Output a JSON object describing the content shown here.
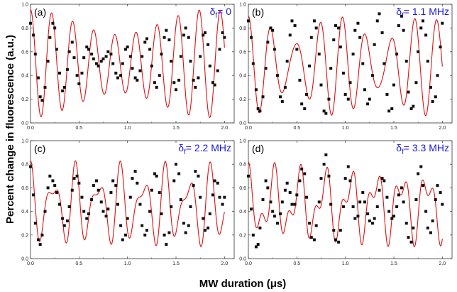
{
  "figure": {
    "ylabel": "Percent change in fluorescence (a.u.)",
    "xlabel": "MW duration (μs)",
    "colors": {
      "fit": "#e01010",
      "points": "#111111",
      "detuning_text": "#1a1adb",
      "axes": "#333333"
    }
  },
  "chart_data": [
    {
      "type": "scatter",
      "panel": "(a)",
      "detuning_prefix": "δ",
      "detuning_sub": "f",
      "detuning_value": "= 0",
      "xlim": [
        0,
        2.1
      ],
      "ylim": [
        0,
        1.0
      ],
      "xticks": [
        "0.0",
        "0.5",
        "1.0",
        "1.5",
        "2.0"
      ],
      "yticks": [
        "0.0",
        "0.2",
        "0.4",
        "0.6",
        "0.8",
        "1.0"
      ],
      "fit": {
        "offset": 0.5,
        "amp1": 0.35,
        "freq1": 4.6,
        "phase1": 0.0,
        "amp2": 0.0,
        "freq2": 0.0,
        "phase2": 0.0,
        "beat_amp": 0.3,
        "beat_freq": 0.55,
        "beat_phase": 0.0,
        "decay": 0.0
      },
      "series": [
        {
          "x": [
            0.0,
            0.03,
            0.05,
            0.08,
            0.1,
            0.12,
            0.15,
            0.18,
            0.2,
            0.23,
            0.25,
            0.27,
            0.3,
            0.33,
            0.35,
            0.38,
            0.4,
            0.43,
            0.45,
            0.48,
            0.5,
            0.53,
            0.55,
            0.58,
            0.6,
            0.63,
            0.65,
            0.68,
            0.7,
            0.73,
            0.75,
            0.78,
            0.8,
            0.83,
            0.85,
            0.88,
            0.9,
            0.93,
            0.95,
            0.98,
            1.0,
            1.03,
            1.05,
            1.08,
            1.1,
            1.13,
            1.15,
            1.18,
            1.2,
            1.23,
            1.25,
            1.28,
            1.3,
            1.33,
            1.35,
            1.38,
            1.4,
            1.43,
            1.45,
            1.48,
            1.5,
            1.53,
            1.55,
            1.58,
            1.6,
            1.63,
            1.65,
            1.68,
            1.7,
            1.73,
            1.75,
            1.78,
            1.8,
            1.83,
            1.85,
            1.88,
            1.9,
            1.93,
            1.95,
            1.98,
            2.0
          ],
          "y": [
            0.84,
            0.74,
            0.58,
            0.38,
            0.22,
            0.19,
            0.3,
            0.52,
            0.72,
            0.84,
            0.8,
            0.62,
            0.42,
            0.27,
            0.3,
            0.45,
            0.6,
            0.68,
            0.55,
            0.4,
            0.33,
            0.42,
            0.55,
            0.64,
            0.62,
            0.58,
            0.54,
            0.5,
            0.48,
            0.52,
            0.54,
            0.56,
            0.6,
            0.58,
            0.5,
            0.42,
            0.38,
            0.4,
            0.5,
            0.62,
            0.64,
            0.56,
            0.46,
            0.38,
            0.36,
            0.44,
            0.56,
            0.68,
            0.71,
            0.62,
            0.48,
            0.34,
            0.3,
            0.4,
            0.58,
            0.72,
            0.78,
            0.7,
            0.52,
            0.34,
            0.28,
            0.36,
            0.56,
            0.74,
            0.8,
            0.72,
            0.52,
            0.36,
            0.3,
            0.38,
            0.56,
            0.74,
            0.76,
            0.66,
            0.48,
            0.34,
            0.32,
            0.44,
            0.62,
            0.76,
            0.72
          ]
        }
      ]
    },
    {
      "type": "scatter",
      "panel": "(b)",
      "detuning_prefix": "δ",
      "detuning_sub": "f",
      "detuning_value": "= 1.1 MHz",
      "xlim": [
        0,
        2.1
      ],
      "ylim": [
        0,
        1.0
      ],
      "xticks": [
        "0.0",
        "0.5",
        "1.0",
        "1.5",
        "2.0"
      ],
      "yticks": [
        "0.0",
        "0.2",
        "0.4",
        "0.6",
        "0.8",
        "1.0"
      ],
      "fit": {
        "offset": 0.48,
        "amp1": 0.3,
        "freq1": 4.1,
        "phase1": 0.0,
        "amp2": 0.12,
        "freq2": 5.2,
        "phase2": 0.0,
        "beat_amp": 0.0,
        "beat_freq": 0.0,
        "beat_phase": 0.0,
        "decay": 0.0
      },
      "series": [
        {
          "x": [
            0.0,
            0.03,
            0.05,
            0.08,
            0.1,
            0.12,
            0.15,
            0.18,
            0.2,
            0.23,
            0.25,
            0.27,
            0.3,
            0.33,
            0.35,
            0.38,
            0.4,
            0.43,
            0.45,
            0.48,
            0.5,
            0.53,
            0.55,
            0.58,
            0.6,
            0.63,
            0.65,
            0.68,
            0.7,
            0.73,
            0.75,
            0.78,
            0.8,
            0.83,
            0.85,
            0.88,
            0.9,
            0.93,
            0.95,
            0.98,
            1.0,
            1.03,
            1.05,
            1.08,
            1.1,
            1.13,
            1.15,
            1.18,
            1.2,
            1.23,
            1.25,
            1.28,
            1.3,
            1.33,
            1.35,
            1.38,
            1.4,
            1.43,
            1.45,
            1.48,
            1.5,
            1.53,
            1.55,
            1.58,
            1.6,
            1.63,
            1.65,
            1.68,
            1.7,
            1.73,
            1.75,
            1.78,
            1.8,
            1.83,
            1.85,
            1.88,
            1.9,
            1.93,
            1.95,
            1.98,
            2.0
          ],
          "y": [
            0.86,
            0.72,
            0.5,
            0.28,
            0.12,
            0.1,
            0.22,
            0.46,
            0.68,
            0.8,
            0.78,
            0.62,
            0.4,
            0.22,
            0.18,
            0.3,
            0.52,
            0.74,
            0.86,
            0.82,
            0.62,
            0.36,
            0.16,
            0.12,
            0.24,
            0.48,
            0.72,
            0.86,
            0.8,
            0.58,
            0.32,
            0.1,
            0.08,
            0.2,
            0.46,
            0.7,
            0.82,
            0.8,
            0.64,
            0.42,
            0.24,
            0.2,
            0.34,
            0.58,
            0.78,
            0.84,
            0.72,
            0.5,
            0.28,
            0.16,
            0.2,
            0.4,
            0.66,
            0.86,
            0.92,
            0.76,
            0.5,
            0.24,
            0.1,
            0.12,
            0.32,
            0.58,
            0.82,
            0.9,
            0.78,
            0.52,
            0.26,
            0.12,
            0.14,
            0.34,
            0.6,
            0.8,
            0.86,
            0.74,
            0.52,
            0.3,
            0.18,
            0.22,
            0.4,
            0.64,
            0.84
          ]
        }
      ]
    },
    {
      "type": "scatter",
      "panel": "(c)",
      "detuning_prefix": "δ",
      "detuning_sub": "f",
      "detuning_value": "= 2.2 MHz",
      "xlim": [
        0,
        2.1
      ],
      "ylim": [
        0,
        1.0
      ],
      "xticks": [
        "0.0",
        "0.5",
        "1.0",
        "1.5",
        "2.0"
      ],
      "yticks": [
        "0.0",
        "0.2",
        "0.4",
        "0.6",
        "0.8",
        "1.0"
      ],
      "fit": {
        "offset": 0.45,
        "amp1": 0.24,
        "freq1": 4.3,
        "phase1": 0.0,
        "amp2": 0.14,
        "freq2": 6.5,
        "phase2": 0.0,
        "beat_amp": 0.0,
        "beat_freq": 0.0,
        "beat_phase": 0.0,
        "decay": 0.0
      },
      "series": [
        {
          "x": [
            0.0,
            0.03,
            0.05,
            0.08,
            0.1,
            0.12,
            0.15,
            0.18,
            0.2,
            0.23,
            0.25,
            0.27,
            0.3,
            0.33,
            0.35,
            0.38,
            0.4,
            0.43,
            0.45,
            0.48,
            0.5,
            0.53,
            0.55,
            0.58,
            0.6,
            0.63,
            0.65,
            0.68,
            0.7,
            0.73,
            0.75,
            0.78,
            0.8,
            0.83,
            0.85,
            0.88,
            0.9,
            0.93,
            0.95,
            0.98,
            1.0,
            1.03,
            1.05,
            1.08,
            1.1,
            1.13,
            1.15,
            1.18,
            1.2,
            1.23,
            1.25,
            1.28,
            1.3,
            1.33,
            1.35,
            1.38,
            1.4,
            1.43,
            1.45,
            1.48,
            1.5,
            1.53,
            1.55,
            1.58,
            1.6,
            1.63,
            1.65,
            1.68,
            1.7,
            1.73,
            1.75,
            1.78,
            1.8,
            1.83,
            1.85,
            1.88,
            1.9,
            1.93,
            1.95,
            1.98,
            2.0
          ],
          "y": [
            0.78,
            0.54,
            0.3,
            0.16,
            0.12,
            0.2,
            0.4,
            0.6,
            0.7,
            0.66,
            0.62,
            0.56,
            0.46,
            0.34,
            0.28,
            0.32,
            0.44,
            0.58,
            0.68,
            0.7,
            0.64,
            0.52,
            0.4,
            0.34,
            0.38,
            0.5,
            0.62,
            0.66,
            0.58,
            0.48,
            0.4,
            0.36,
            0.42,
            0.56,
            0.66,
            0.62,
            0.46,
            0.28,
            0.16,
            0.2,
            0.34,
            0.52,
            0.68,
            0.74,
            0.64,
            0.46,
            0.28,
            0.2,
            0.24,
            0.4,
            0.58,
            0.72,
            0.7,
            0.56,
            0.38,
            0.2,
            0.12,
            0.22,
            0.44,
            0.66,
            0.8,
            0.72,
            0.5,
            0.3,
            0.22,
            0.28,
            0.44,
            0.62,
            0.74,
            0.7,
            0.52,
            0.34,
            0.24,
            0.26,
            0.38,
            0.54,
            0.66,
            0.64,
            0.52,
            0.46,
            0.52
          ]
        }
      ]
    },
    {
      "type": "scatter",
      "panel": "(d)",
      "detuning_prefix": "δ",
      "detuning_sub": "f",
      "detuning_value": "= 3.3 MHz",
      "xlim": [
        0,
        2.1
      ],
      "ylim": [
        0,
        1.0
      ],
      "xticks": [
        "0.0",
        "0.5",
        "1.0",
        "1.5",
        "2.0"
      ],
      "yticks": [
        "0.0",
        "0.2",
        "0.4",
        "0.6",
        "0.8",
        "1.0"
      ],
      "fit": {
        "offset": 0.46,
        "amp1": 0.22,
        "freq1": 3.8,
        "phase1": 0.0,
        "amp2": 0.14,
        "freq2": 7.3,
        "phase2": 0.0,
        "beat_amp": 0.0,
        "beat_freq": 0.0,
        "beat_phase": 0.0,
        "decay": 0.0
      },
      "series": [
        {
          "x": [
            0.0,
            0.03,
            0.05,
            0.08,
            0.1,
            0.12,
            0.15,
            0.18,
            0.2,
            0.23,
            0.25,
            0.27,
            0.3,
            0.33,
            0.35,
            0.38,
            0.4,
            0.43,
            0.45,
            0.48,
            0.5,
            0.53,
            0.55,
            0.58,
            0.6,
            0.63,
            0.65,
            0.68,
            0.7,
            0.73,
            0.75,
            0.78,
            0.8,
            0.83,
            0.85,
            0.88,
            0.9,
            0.93,
            0.95,
            0.98,
            1.0,
            1.03,
            1.05,
            1.08,
            1.1,
            1.13,
            1.15,
            1.18,
            1.2,
            1.23,
            1.25,
            1.28,
            1.3,
            1.33,
            1.35,
            1.38,
            1.4,
            1.43,
            1.45,
            1.48,
            1.5,
            1.53,
            1.55,
            1.58,
            1.6,
            1.63,
            1.65,
            1.68,
            1.7,
            1.73,
            1.75,
            1.78,
            1.8,
            1.83,
            1.85,
            1.88,
            1.9,
            1.93,
            1.95,
            1.98,
            2.0
          ],
          "y": [
            0.7,
            0.42,
            0.2,
            0.1,
            0.12,
            0.26,
            0.5,
            0.66,
            0.6,
            0.48,
            0.4,
            0.36,
            0.3,
            0.38,
            0.48,
            0.58,
            0.64,
            0.56,
            0.46,
            0.46,
            0.54,
            0.66,
            0.76,
            0.72,
            0.52,
            0.3,
            0.18,
            0.16,
            0.28,
            0.48,
            0.68,
            0.8,
            0.88,
            0.7,
            0.46,
            0.24,
            0.16,
            0.14,
            0.24,
            0.44,
            0.68,
            0.78,
            0.66,
            0.44,
            0.34,
            0.36,
            0.48,
            0.56,
            0.48,
            0.38,
            0.32,
            0.3,
            0.34,
            0.44,
            0.58,
            0.68,
            0.66,
            0.52,
            0.4,
            0.34,
            0.36,
            0.44,
            0.54,
            0.6,
            0.48,
            0.3,
            0.18,
            0.14,
            0.26,
            0.5,
            0.72,
            0.78,
            0.62,
            0.4,
            0.26,
            0.22,
            0.32,
            0.5,
            0.62,
            0.56,
            0.46
          ]
        }
      ]
    }
  ]
}
